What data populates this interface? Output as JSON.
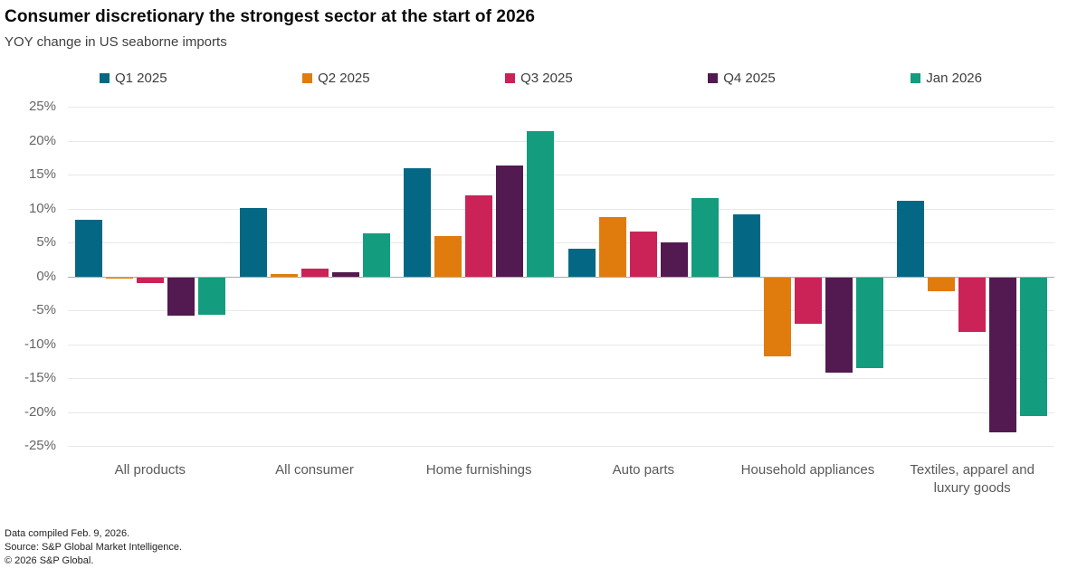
{
  "header": {
    "title": "Consumer discretionary the strongest sector at the start of 2026",
    "subtitle": "YOY change in US seaborne imports"
  },
  "chart_data": {
    "type": "bar",
    "title": "Consumer discretionary the strongest sector at the start of 2026",
    "subtitle": "YOY change in US seaborne imports",
    "categories": [
      "All products",
      "All consumer",
      "Home furnishings",
      "Auto parts",
      "Household appliances",
      "Textiles, apparel and luxury goods"
    ],
    "series": [
      {
        "name": "Q1 2025",
        "color": "#046885",
        "values": [
          8.4,
          10.1,
          16.0,
          4.1,
          9.2,
          11.2
        ]
      },
      {
        "name": "Q2 2025",
        "color": "#E07C0E",
        "values": [
          -0.2,
          0.4,
          6.0,
          8.7,
          -11.6,
          -2.1
        ]
      },
      {
        "name": "Q3 2025",
        "color": "#CB2357",
        "values": [
          -0.9,
          1.2,
          12.0,
          6.6,
          -6.9,
          -8.0
        ]
      },
      {
        "name": "Q4 2025",
        "color": "#521A51",
        "values": [
          -5.6,
          0.6,
          16.3,
          5.0,
          -14.0,
          -22.9
        ]
      },
      {
        "name": "Jan 2026",
        "color": "#139C7E",
        "values": [
          -5.5,
          6.3,
          21.4,
          11.5,
          -13.4,
          -20.4
        ]
      }
    ],
    "ylabel": "",
    "xlabel": "",
    "ylim": [
      -25,
      25
    ],
    "ytick_step": 5,
    "ytick_suffix": "%",
    "grid": true,
    "legend_position": "top",
    "zero_line_color": "#a9a9a9",
    "gridline_color": "#e8e8e8"
  },
  "footer": {
    "lines": [
      "Data compiled Feb. 9, 2026.",
      "Source: S&P Global Market Intelligence.",
      "© 2026 S&P Global."
    ]
  }
}
